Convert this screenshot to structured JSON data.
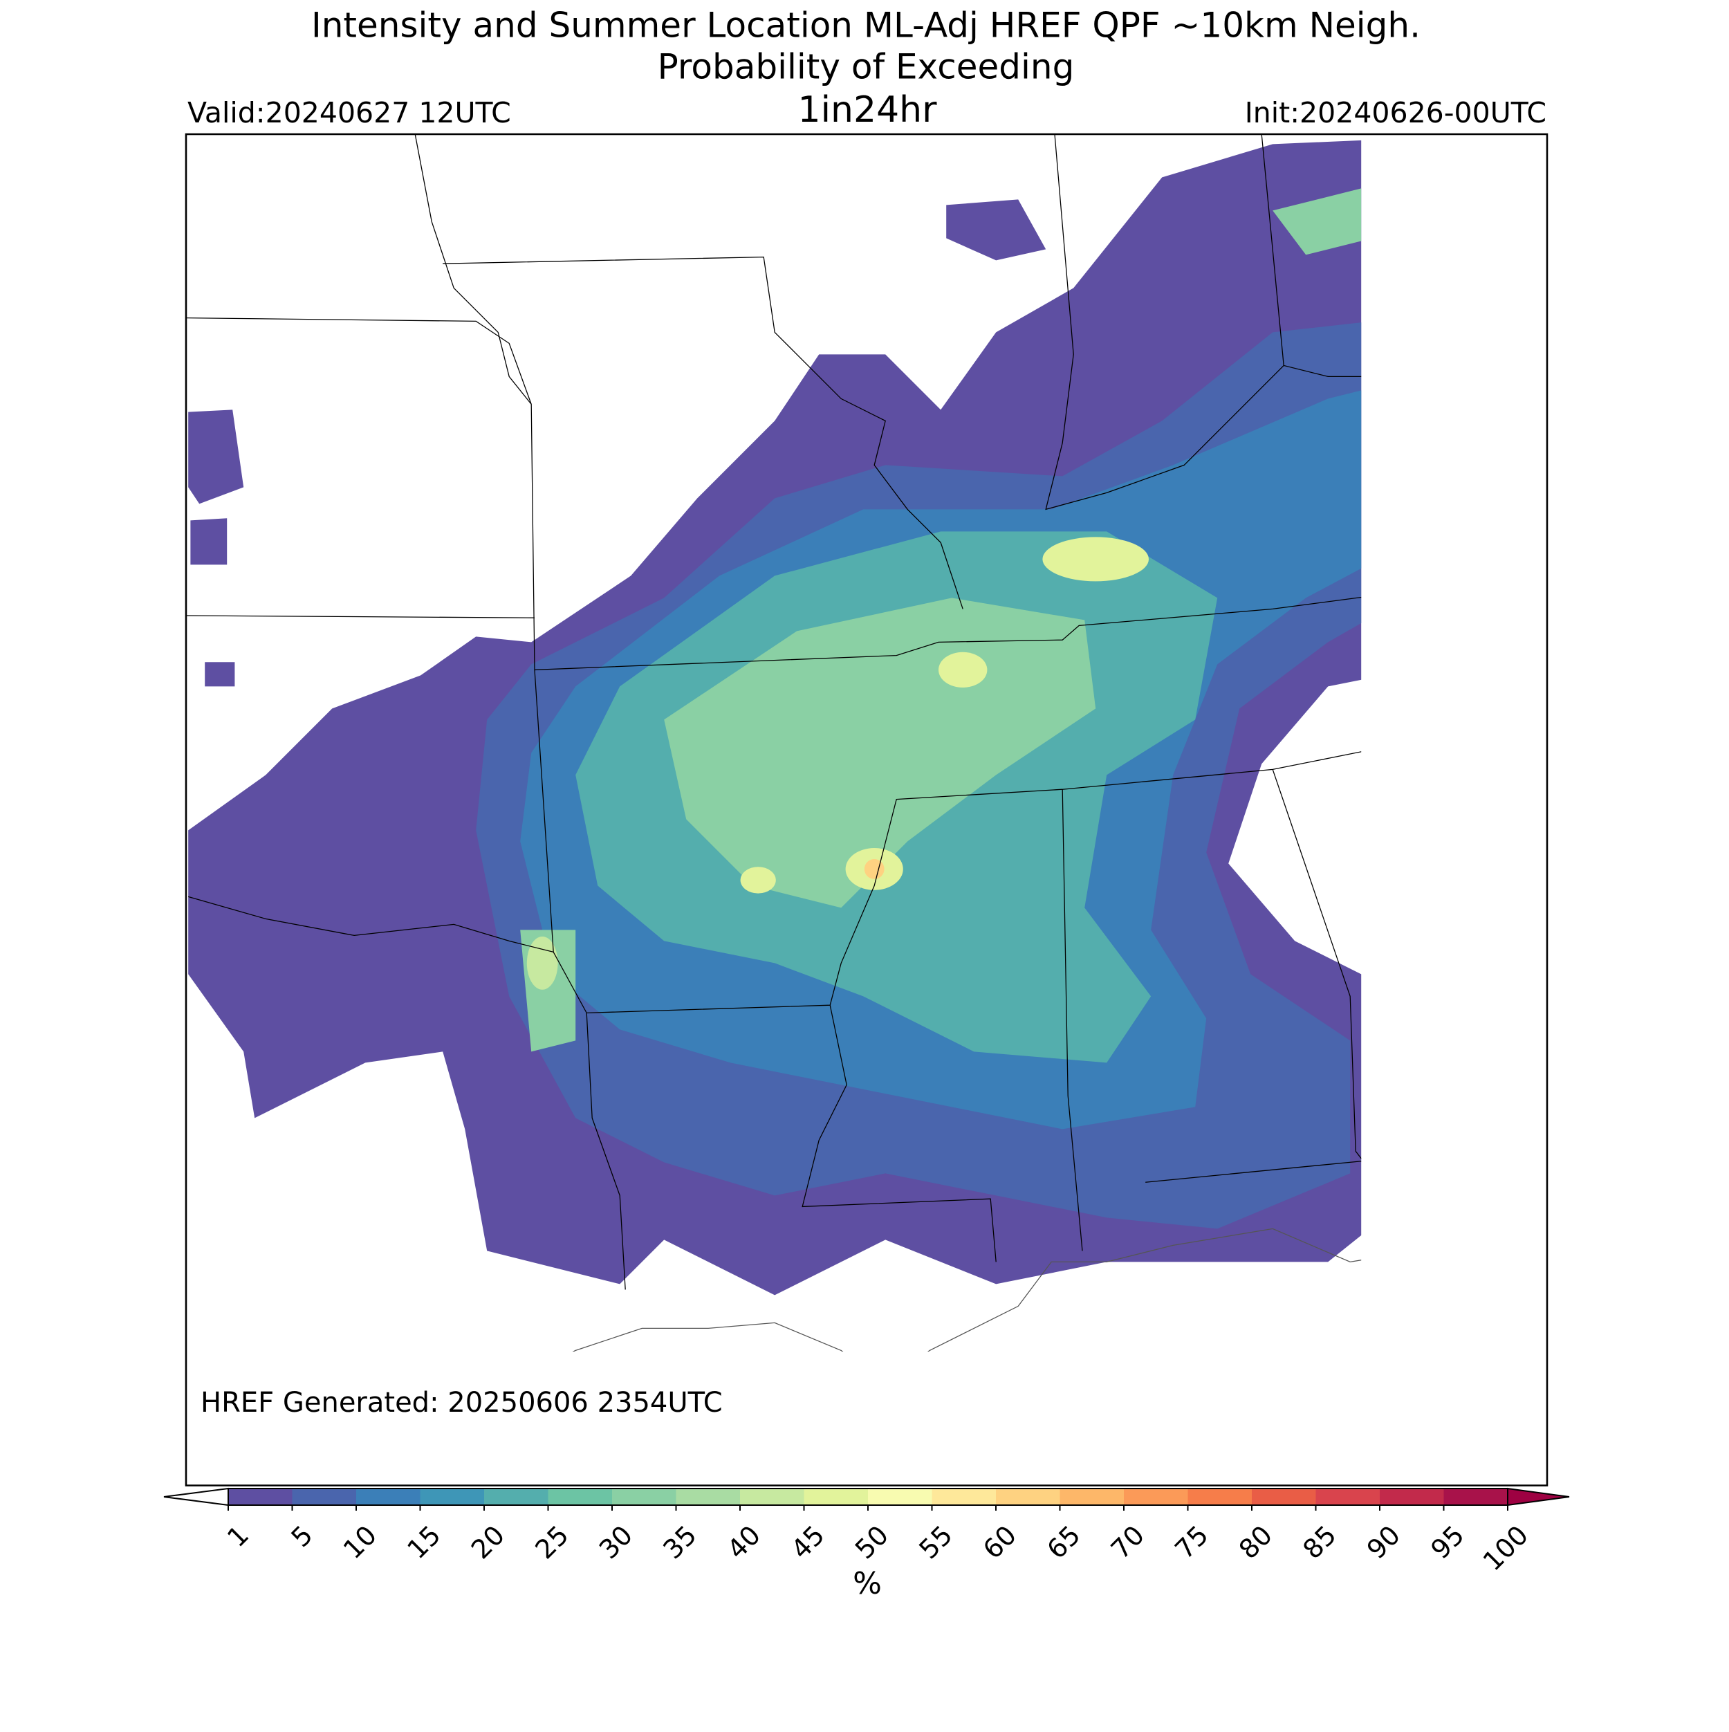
{
  "header": {
    "title": "Intensity and Summer Location ML-Adj HREF QPF ~10km Neigh.",
    "subtitle": "Probability of Exceeding",
    "valid": "Valid:20240627 12UTC",
    "threshold": "1in24hr",
    "init": "Init:20240626-00UTC"
  },
  "footer_note": "HREF Generated: 20250606 2354UTC",
  "colorbar": {
    "ticks": [
      1,
      5,
      10,
      15,
      20,
      25,
      30,
      35,
      40,
      45,
      50,
      55,
      60,
      65,
      70,
      75,
      80,
      85,
      90,
      95,
      100
    ],
    "colors": [
      "#5e4fa2",
      "#4a65ad",
      "#3b7fb8",
      "#3e96b7",
      "#54aead",
      "#6cc4a4",
      "#8ad0a4",
      "#a9dca3",
      "#c7e9a0",
      "#e2f39b",
      "#f8fbb0",
      "#fee89a",
      "#fed281",
      "#fdb769",
      "#fb9a58",
      "#f67d4a",
      "#e95d46",
      "#d9444d",
      "#c22a4b",
      "#a8124a"
    ],
    "over_color": "#9e0142",
    "under_color": "#ffffff",
    "label": "%"
  }
}
